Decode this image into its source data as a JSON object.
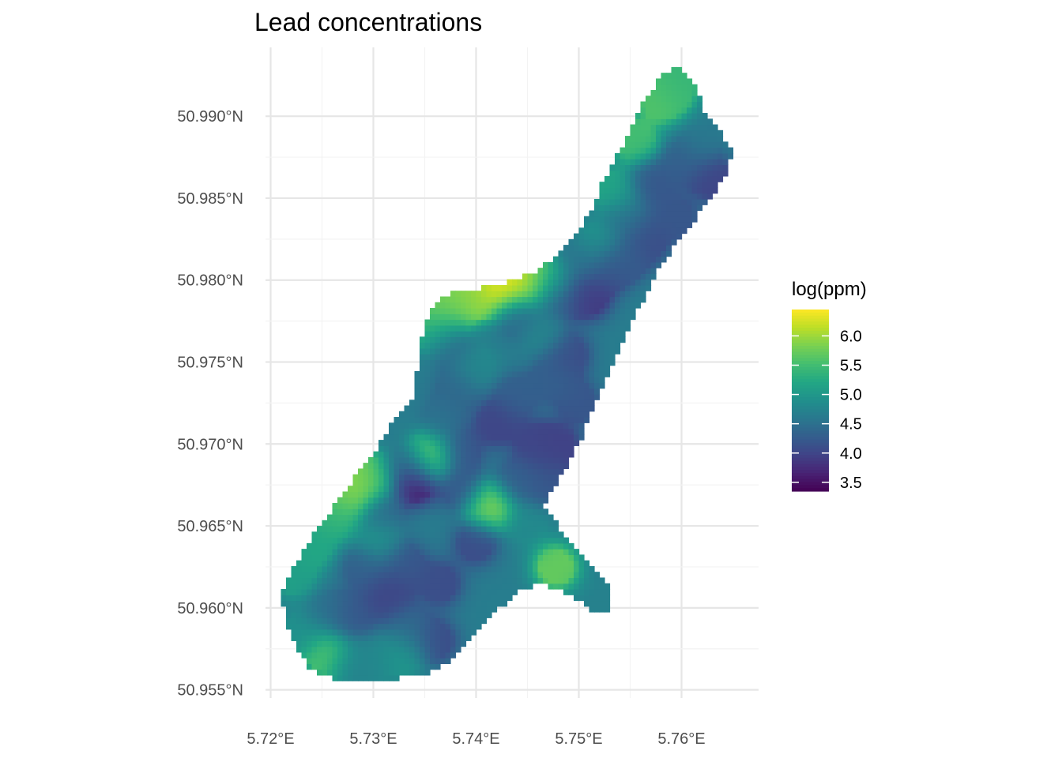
{
  "chart_data": {
    "type": "heatmap",
    "title": "Lead concentrations",
    "xlabel": "",
    "ylabel": "",
    "x_ticks": [
      "5.72°E",
      "5.73°E",
      "5.74°E",
      "5.75°E",
      "5.76°E"
    ],
    "x_tick_values": [
      5.72,
      5.73,
      5.74,
      5.75,
      5.76
    ],
    "y_ticks": [
      "50.955°N",
      "50.960°N",
      "50.965°N",
      "50.970°N",
      "50.975°N",
      "50.980°N",
      "50.985°N",
      "50.990°N"
    ],
    "y_tick_values": [
      50.955,
      50.96,
      50.965,
      50.97,
      50.975,
      50.98,
      50.985,
      50.99
    ],
    "xlim": [
      5.7195,
      5.7675
    ],
    "ylim": [
      50.9545,
      50.9942
    ],
    "grid": true,
    "legend": {
      "title": "log(ppm)",
      "position": "right",
      "ticks": [
        "6.0",
        "5.5",
        "5.0",
        "4.5",
        "4.0",
        "3.5"
      ],
      "tick_values": [
        6.0,
        5.5,
        5.0,
        4.5,
        4.0,
        3.5
      ],
      "range": [
        3.35,
        6.45
      ],
      "colormap": "viridis"
    },
    "base_value": 4.65,
    "region_outline": [
      [
        5.721,
        50.961
      ],
      [
        5.7225,
        50.9628
      ],
      [
        5.7245,
        50.9648
      ],
      [
        5.7265,
        50.9665
      ],
      [
        5.7285,
        50.9682
      ],
      [
        5.7305,
        50.9698
      ],
      [
        5.732,
        50.9715
      ],
      [
        5.734,
        50.9728
      ],
      [
        5.7345,
        50.976
      ],
      [
        5.7355,
        50.9782
      ],
      [
        5.7375,
        50.9792
      ],
      [
        5.7405,
        50.9795
      ],
      [
        5.744,
        50.98
      ],
      [
        5.7465,
        50.9808
      ],
      [
        5.749,
        50.9822
      ],
      [
        5.751,
        50.984
      ],
      [
        5.7525,
        50.9862
      ],
      [
        5.7545,
        50.9885
      ],
      [
        5.756,
        50.9906
      ],
      [
        5.7575,
        50.992
      ],
      [
        5.7595,
        50.9933
      ],
      [
        5.761,
        50.9922
      ],
      [
        5.7625,
        50.99
      ],
      [
        5.765,
        50.988
      ],
      [
        5.7645,
        50.9865
      ],
      [
        5.7625,
        50.9848
      ],
      [
        5.7605,
        50.983
      ],
      [
        5.758,
        50.981
      ],
      [
        5.756,
        50.9785
      ],
      [
        5.754,
        50.976
      ],
      [
        5.752,
        50.973
      ],
      [
        5.75,
        50.97
      ],
      [
        5.748,
        50.9678
      ],
      [
        5.7465,
        50.9662
      ],
      [
        5.748,
        50.965
      ],
      [
        5.75,
        50.9635
      ],
      [
        5.752,
        50.962
      ],
      [
        5.7532,
        50.961
      ],
      [
        5.7532,
        50.9595
      ],
      [
        5.7515,
        50.9598
      ],
      [
        5.749,
        50.9608
      ],
      [
        5.7465,
        50.9615
      ],
      [
        5.744,
        50.961
      ],
      [
        5.742,
        50.9598
      ],
      [
        5.7395,
        50.9582
      ],
      [
        5.7375,
        50.9568
      ],
      [
        5.7355,
        50.956
      ],
      [
        5.7325,
        50.9557
      ],
      [
        5.729,
        50.9556
      ],
      [
        5.726,
        50.9557
      ],
      [
        5.724,
        50.9562
      ],
      [
        5.7225,
        50.9575
      ],
      [
        5.7215,
        50.9592
      ]
    ],
    "points": [
      {
        "x": 5.7595,
        "y": 50.9918,
        "v": 5.4
      },
      {
        "x": 5.758,
        "y": 50.991,
        "v": 5.6
      },
      {
        "x": 5.7555,
        "y": 50.9885,
        "v": 5.5
      },
      {
        "x": 5.762,
        "y": 50.9885,
        "v": 4.6
      },
      {
        "x": 5.76,
        "y": 50.9872,
        "v": 4.3
      },
      {
        "x": 5.763,
        "y": 50.9862,
        "v": 4.0
      },
      {
        "x": 5.757,
        "y": 50.986,
        "v": 4.2
      },
      {
        "x": 5.7535,
        "y": 50.9855,
        "v": 5.2
      },
      {
        "x": 5.7595,
        "y": 50.9838,
        "v": 4.2
      },
      {
        "x": 5.7545,
        "y": 50.9838,
        "v": 4.5
      },
      {
        "x": 5.7565,
        "y": 50.9823,
        "v": 4.1
      },
      {
        "x": 5.752,
        "y": 50.9822,
        "v": 5.0
      },
      {
        "x": 5.7545,
        "y": 50.9812,
        "v": 4.3
      },
      {
        "x": 5.75,
        "y": 50.9812,
        "v": 4.5
      },
      {
        "x": 5.753,
        "y": 50.9808,
        "v": 4.1
      },
      {
        "x": 5.751,
        "y": 50.979,
        "v": 3.9
      },
      {
        "x": 5.7482,
        "y": 50.979,
        "v": 4.2
      },
      {
        "x": 5.747,
        "y": 50.98,
        "v": 5.4
      },
      {
        "x": 5.7448,
        "y": 50.98,
        "v": 6.2
      },
      {
        "x": 5.7425,
        "y": 50.9795,
        "v": 6.4
      },
      {
        "x": 5.7398,
        "y": 50.979,
        "v": 5.9
      },
      {
        "x": 5.7372,
        "y": 50.9782,
        "v": 5.8
      },
      {
        "x": 5.736,
        "y": 50.977,
        "v": 5.5
      },
      {
        "x": 5.7372,
        "y": 50.9762,
        "v": 4.3
      },
      {
        "x": 5.744,
        "y": 50.9778,
        "v": 4.4
      },
      {
        "x": 5.7465,
        "y": 50.9768,
        "v": 4.8
      },
      {
        "x": 5.749,
        "y": 50.9755,
        "v": 4.1
      },
      {
        "x": 5.7475,
        "y": 50.974,
        "v": 4.3
      },
      {
        "x": 5.74,
        "y": 50.9748,
        "v": 4.8
      },
      {
        "x": 5.738,
        "y": 50.9733,
        "v": 4.4
      },
      {
        "x": 5.744,
        "y": 50.973,
        "v": 4.3
      },
      {
        "x": 5.75,
        "y": 50.9725,
        "v": 4.2
      },
      {
        "x": 5.7365,
        "y": 50.9715,
        "v": 4.5
      },
      {
        "x": 5.742,
        "y": 50.9713,
        "v": 4.0
      },
      {
        "x": 5.746,
        "y": 50.97,
        "v": 4.0
      },
      {
        "x": 5.748,
        "y": 50.9697,
        "v": 3.95
      },
      {
        "x": 5.7385,
        "y": 50.9695,
        "v": 4.2
      },
      {
        "x": 5.7355,
        "y": 50.9692,
        "v": 5.9
      },
      {
        "x": 5.733,
        "y": 50.9688,
        "v": 4.5
      },
      {
        "x": 5.734,
        "y": 50.9678,
        "v": 3.5
      },
      {
        "x": 5.73,
        "y": 50.968,
        "v": 5.6
      },
      {
        "x": 5.7283,
        "y": 50.9675,
        "v": 6.0
      },
      {
        "x": 5.7265,
        "y": 50.9668,
        "v": 5.7
      },
      {
        "x": 5.7385,
        "y": 50.9673,
        "v": 4.2
      },
      {
        "x": 5.744,
        "y": 50.9678,
        "v": 4.3
      },
      {
        "x": 5.747,
        "y": 50.9678,
        "v": 4.2
      },
      {
        "x": 5.7412,
        "y": 50.9662,
        "v": 5.9
      },
      {
        "x": 5.726,
        "y": 50.9655,
        "v": 5.3
      },
      {
        "x": 5.7312,
        "y": 50.9658,
        "v": 4.4
      },
      {
        "x": 5.745,
        "y": 50.965,
        "v": 4.8
      },
      {
        "x": 5.7305,
        "y": 50.9642,
        "v": 5.0
      },
      {
        "x": 5.74,
        "y": 50.964,
        "v": 4.1
      },
      {
        "x": 5.724,
        "y": 50.9638,
        "v": 5.2
      },
      {
        "x": 5.733,
        "y": 50.9628,
        "v": 4.2
      },
      {
        "x": 5.7478,
        "y": 50.9625,
        "v": 5.7
      },
      {
        "x": 5.7222,
        "y": 50.962,
        "v": 5.1
      },
      {
        "x": 5.729,
        "y": 50.9625,
        "v": 4.3
      },
      {
        "x": 5.7365,
        "y": 50.9615,
        "v": 4.1
      },
      {
        "x": 5.7315,
        "y": 50.9608,
        "v": 4.0
      },
      {
        "x": 5.752,
        "y": 50.9605,
        "v": 4.7
      },
      {
        "x": 5.7255,
        "y": 50.9598,
        "v": 4.5
      },
      {
        "x": 5.728,
        "y": 50.9595,
        "v": 4.2
      },
      {
        "x": 5.7335,
        "y": 50.9588,
        "v": 4.4
      },
      {
        "x": 5.736,
        "y": 50.958,
        "v": 4.1
      },
      {
        "x": 5.723,
        "y": 50.9585,
        "v": 4.9
      },
      {
        "x": 5.7255,
        "y": 50.9572,
        "v": 5.6
      },
      {
        "x": 5.73,
        "y": 50.9568,
        "v": 4.8
      },
      {
        "x": 5.733,
        "y": 50.9572,
        "v": 5.0
      },
      {
        "x": 5.728,
        "y": 50.9565,
        "v": 4.7
      }
    ]
  }
}
